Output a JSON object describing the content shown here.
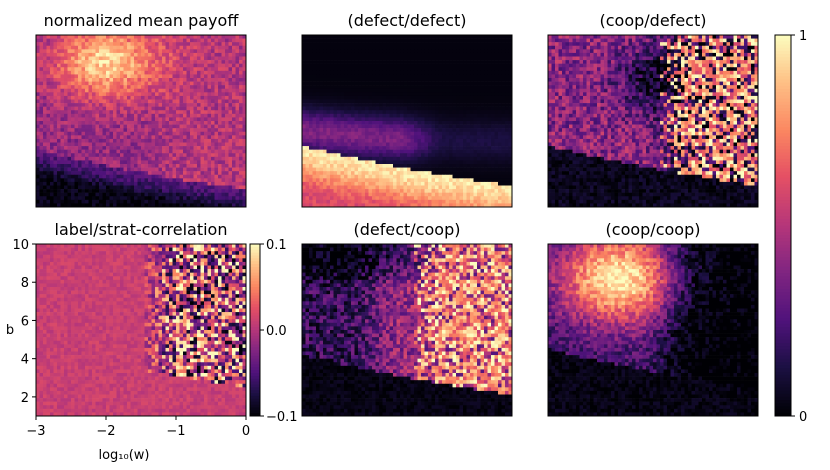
{
  "chart_data": {
    "type": "heatmap",
    "x_range": [
      -3,
      0
    ],
    "y_range": [
      1,
      10
    ],
    "panels": [
      {
        "id": "mean-payoff",
        "title": "normalized mean payoff",
        "pattern": "mean"
      },
      {
        "id": "defect-defect",
        "title": "(defect/defect)",
        "pattern": "dd"
      },
      {
        "id": "coop-defect",
        "title": "(coop/defect)",
        "pattern": "cd"
      },
      {
        "id": "label-strat-correlation",
        "title": "label/strat-correlation",
        "pattern": "corr",
        "xlabel": "log₁₀(w)",
        "ylabel": "b",
        "xticks": [
          {
            "v": -3,
            "t": "−3"
          },
          {
            "v": -2,
            "t": "−2"
          },
          {
            "v": -1,
            "t": "−1"
          },
          {
            "v": 0,
            "t": "0"
          }
        ],
        "yticks": [
          {
            "v": 2,
            "t": "2"
          },
          {
            "v": 4,
            "t": "4"
          },
          {
            "v": 6,
            "t": "6"
          },
          {
            "v": 8,
            "t": "8"
          },
          {
            "v": 10,
            "t": "10"
          }
        ],
        "colorbar": {
          "range": [
            -0.1,
            0.1
          ],
          "ticks": [
            {
              "v": 0.1,
              "t": "0.1"
            },
            {
              "v": 0.0,
              "t": "0.0"
            },
            {
              "v": -0.1,
              "t": "−0.1"
            }
          ]
        }
      },
      {
        "id": "defect-coop",
        "title": "(defect/coop)",
        "pattern": "dc"
      },
      {
        "id": "coop-coop",
        "title": "(coop/coop)",
        "pattern": "cc"
      }
    ],
    "colorbar": {
      "range": [
        0,
        1
      ],
      "ticks": [
        {
          "v": 1,
          "t": "1"
        },
        {
          "v": 0,
          "t": "0"
        }
      ]
    },
    "colormap": "magma"
  }
}
